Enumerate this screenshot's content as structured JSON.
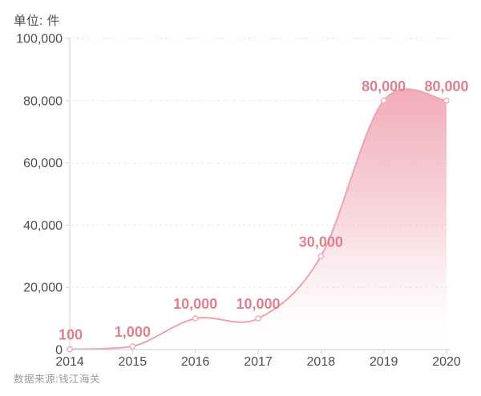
{
  "header": {
    "unit_label": "单位: 件"
  },
  "footer": {
    "source": "数据来源:钱江海关"
  },
  "chart_data": {
    "type": "area",
    "title": "",
    "xlabel": "",
    "ylabel": "单位: 件",
    "x": [
      2014,
      2015,
      2016,
      2017,
      2018,
      2019,
      2020
    ],
    "x_tick_labels": [
      "2014",
      "2015",
      "2016",
      "2017",
      "2018",
      "2019",
      "2020"
    ],
    "values": [
      100,
      1000,
      10000,
      10000,
      30000,
      80000,
      80000
    ],
    "point_labels": [
      "100",
      "1,000",
      "10,000",
      "10,000",
      "30,000",
      "80,000",
      "80,000"
    ],
    "ylim": [
      0,
      100000
    ],
    "y_ticks": [
      0,
      20000,
      40000,
      60000,
      80000,
      100000
    ],
    "y_tick_labels": [
      "0",
      "20,000",
      "40,000",
      "60,000",
      "80,000",
      "100,000"
    ],
    "smooth": true,
    "grid": "dotted-horizontal",
    "legend": "none",
    "colors": {
      "line": "#eda3b0",
      "fill_top": "#f0a3b2",
      "fill_bottom": "#ffffff",
      "point_fill": "#ffffff",
      "point_stroke": "#eeacb9",
      "data_label": "#df808d",
      "axis_line": "#cfcfcf",
      "grid_line": "#e7e7e7",
      "tick_text": "#4d4d4d",
      "unit_text": "#4d4d4d",
      "source_text": "#9a9a9a"
    }
  }
}
